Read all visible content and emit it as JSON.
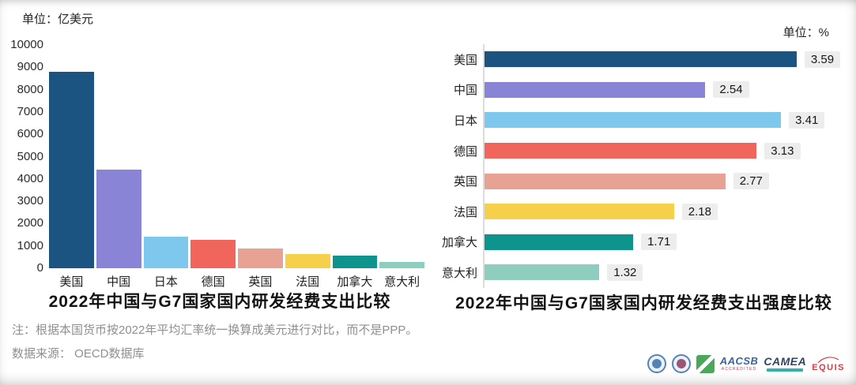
{
  "colors": {
    "bars": [
      "#1b5480",
      "#8a84d7",
      "#7ec8ee",
      "#f0655c",
      "#e8a293",
      "#f6cf4b",
      "#0e948d",
      "#8fcdbf"
    ],
    "title": "#131313",
    "note": "#8f8f8f",
    "axis_line": "#dcdcdc",
    "value_chip_bg": "#ededed"
  },
  "left_chart": {
    "unit_label": "单位：亿美元",
    "title": "2022年中国与G7国家国内研发经费支出比较"
  },
  "right_chart": {
    "unit_label": "单位：%",
    "title": "2022年中国与G7国家国内研发经费支出强度比较"
  },
  "footnote": {
    "note": "注：根据本国货币按2022年平均汇率统一换算成美元进行对比，而不是PPP。",
    "source": "数据来源： OECD数据库"
  },
  "logos": {
    "seal1": "university-seal",
    "seal2": "university-seal",
    "green_square": "accreditation-mark",
    "aacsb": "AACSB",
    "aacsb_sub": "ACCREDITED",
    "camea": "CAMEA",
    "equis": "EQUIS"
  },
  "chart_data": [
    {
      "type": "bar",
      "orientation": "vertical",
      "title": "2022年中国与G7国家国内研发经费支出比较",
      "unit": "亿美元",
      "categories": [
        "美国",
        "中国",
        "日本",
        "德国",
        "英国",
        "法国",
        "加拿大",
        "意大利"
      ],
      "values": [
        8800,
        4400,
        1400,
        1270,
        880,
        650,
        570,
        280
      ],
      "ylim": [
        0,
        10000
      ],
      "ytick_step": 1000,
      "grid": false,
      "legend": "none"
    },
    {
      "type": "bar",
      "orientation": "horizontal",
      "title": "2022年中国与G7国家国内研发经费支出强度比较",
      "unit": "%",
      "categories": [
        "美国",
        "中国",
        "日本",
        "德国",
        "英国",
        "法国",
        "加拿大",
        "意大利"
      ],
      "values": [
        3.59,
        2.54,
        3.41,
        3.13,
        2.77,
        2.18,
        1.71,
        1.32
      ],
      "data_labels": [
        "3.59",
        "2.54",
        "3.41",
        "3.13",
        "2.77",
        "2.18",
        "1.71",
        "1.32"
      ],
      "xlim": [
        0,
        4
      ],
      "grid": false,
      "legend": "none"
    }
  ]
}
